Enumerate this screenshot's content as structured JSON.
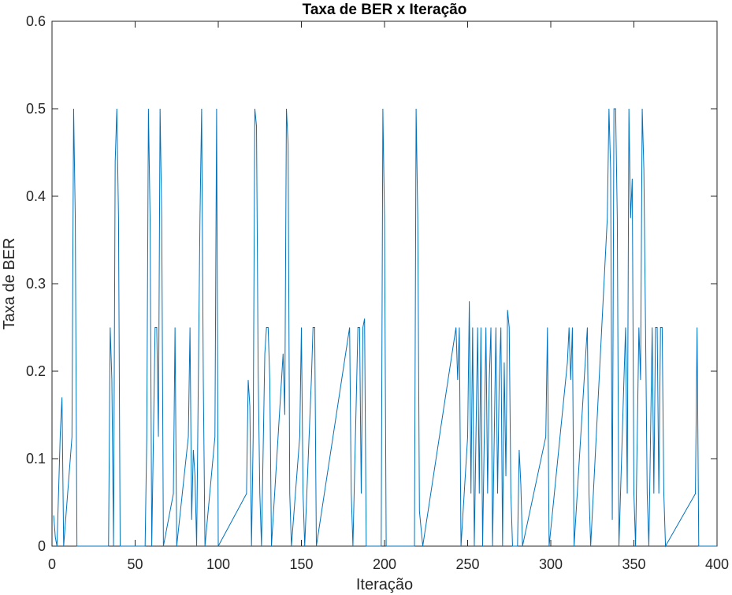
{
  "chart_data": {
    "type": "line",
    "title": "Taxa de BER x Iteração",
    "xlabel": "Iteração",
    "ylabel": "Taxa de BER",
    "xlim": [
      0,
      400
    ],
    "xticks": [
      0,
      50,
      100,
      150,
      200,
      250,
      300,
      350,
      400
    ],
    "ylim": [
      0,
      0.6
    ],
    "yticks": [
      0,
      0.1,
      0.2,
      0.3,
      0.4,
      0.5,
      0.6
    ],
    "series": [
      {
        "color": "#0072bd",
        "x": [
          1,
          2,
          3,
          5,
          6,
          7,
          12,
          13,
          14,
          15,
          34,
          35,
          36,
          37,
          38,
          39,
          40,
          41,
          56,
          57,
          58,
          59,
          60,
          62,
          63,
          64,
          65,
          66,
          67,
          73,
          74,
          75,
          82,
          83,
          84,
          85,
          86,
          87,
          89,
          90,
          91,
          92,
          98,
          99,
          100,
          117,
          118,
          119,
          120,
          121,
          122,
          123,
          124,
          125,
          126,
          128,
          129,
          130,
          131,
          132,
          139,
          140,
          141,
          142,
          143,
          144,
          149,
          150,
          151,
          152,
          156,
          157,
          158,
          159,
          179,
          180,
          181,
          184,
          185,
          186,
          187,
          188,
          189,
          198,
          199,
          200,
          201,
          218,
          219,
          220,
          221,
          222,
          223,
          243,
          244,
          245,
          246,
          250,
          251,
          252,
          253,
          254,
          256,
          257,
          258,
          259,
          261,
          262,
          263,
          264,
          265,
          267,
          268,
          269,
          270,
          271,
          272,
          273,
          274,
          275,
          276,
          277,
          280,
          281,
          282,
          283,
          297,
          298,
          299,
          310,
          311,
          312,
          313,
          314,
          322,
          323,
          324,
          334,
          335,
          336,
          337,
          338,
          339,
          340,
          341,
          344,
          345,
          346,
          347,
          348,
          349,
          350,
          351,
          353,
          354,
          355,
          356,
          357,
          358,
          359,
          361,
          362,
          363,
          364,
          365,
          366,
          367,
          368,
          369,
          387,
          388,
          389,
          400
        ],
        "values": [
          0.035,
          0.01,
          0,
          0.13,
          0.17,
          0,
          0.125,
          0.5,
          0.375,
          0,
          0,
          0.25,
          0.19,
          0,
          0.44,
          0.5,
          0.375,
          0,
          0,
          0.125,
          0.5,
          0.375,
          0,
          0.25,
          0.25,
          0.125,
          0.5,
          0.375,
          0,
          0.06,
          0.25,
          0,
          0.125,
          0.25,
          0.03,
          0.11,
          0.08,
          0,
          0.375,
          0.5,
          0.19,
          0,
          0.125,
          0.5,
          0,
          0.06,
          0.19,
          0.16,
          0,
          0.125,
          0.5,
          0.48,
          0.2,
          0.06,
          0,
          0.22,
          0.25,
          0.25,
          0.19,
          0,
          0.22,
          0.15,
          0.5,
          0.46,
          0.06,
          0,
          0.125,
          0.25,
          0.06,
          0,
          0.19,
          0.25,
          0.25,
          0,
          0.25,
          0.06,
          0,
          0.25,
          0.25,
          0.06,
          0.25,
          0.26,
          0,
          0,
          0.5,
          0.375,
          0,
          0,
          0.5,
          0.375,
          0.04,
          0.02,
          0,
          0.25,
          0.19,
          0.25,
          0,
          0.125,
          0.28,
          0.06,
          0.25,
          0,
          0.25,
          0.06,
          0.25,
          0,
          0.25,
          0.06,
          0.19,
          0.25,
          0,
          0.25,
          0.06,
          0.19,
          0.25,
          0,
          0.21,
          0.08,
          0.27,
          0.25,
          0.06,
          0,
          0,
          0.11,
          0.07,
          0,
          0.125,
          0.25,
          0,
          0.21,
          0.25,
          0.19,
          0.25,
          0,
          0.25,
          0.06,
          0,
          0.375,
          0.5,
          0.43,
          0.03,
          0.5,
          0.5,
          0.375,
          0,
          0.19,
          0.25,
          0.06,
          0.5,
          0.375,
          0.42,
          0.06,
          0,
          0.25,
          0.19,
          0.5,
          0.43,
          0.25,
          0.06,
          0,
          0.25,
          0.06,
          0.25,
          0.25,
          0.06,
          0.25,
          0.25,
          0.06,
          0,
          0.06,
          0.25,
          0,
          0
        ]
      }
    ]
  }
}
